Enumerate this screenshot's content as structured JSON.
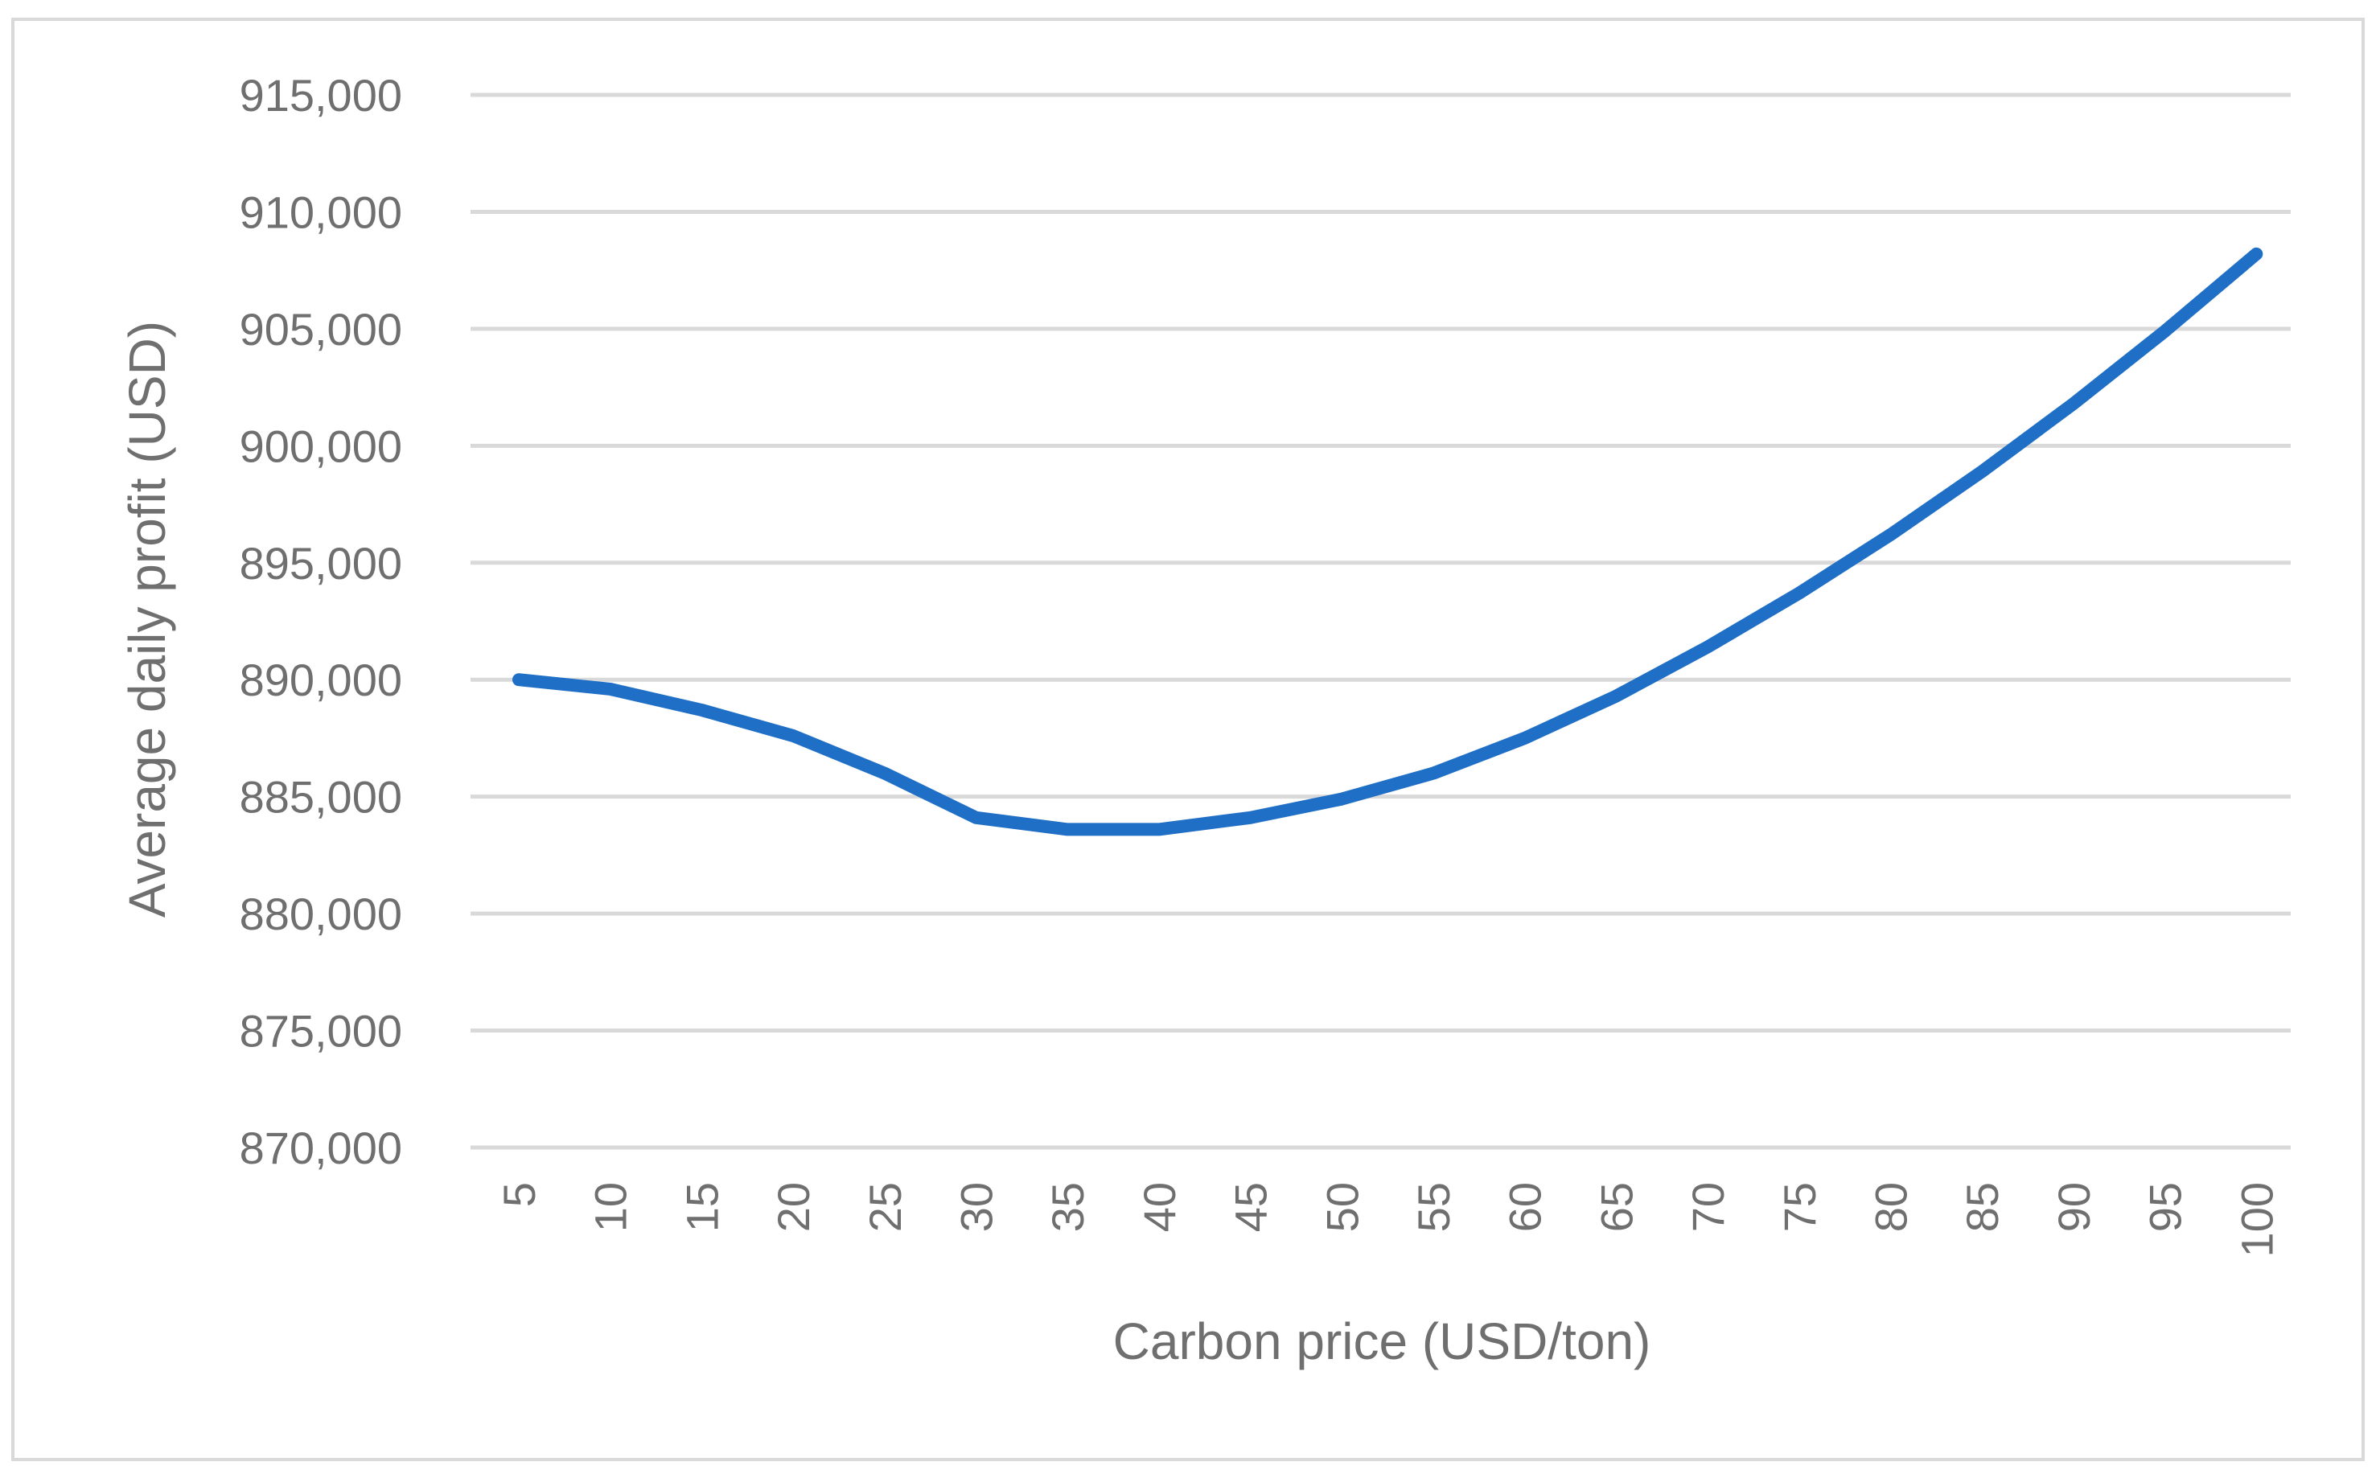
{
  "chart_data": {
    "type": "line",
    "title": "",
    "xlabel": "Carbon price (USD/ton)",
    "ylabel": "Average daily profit (USD)",
    "x": [
      5,
      10,
      15,
      20,
      25,
      30,
      35,
      40,
      45,
      50,
      55,
      60,
      65,
      70,
      75,
      80,
      85,
      90,
      95,
      100
    ],
    "x_tick_labels": [
      "5",
      "10",
      "15",
      "20",
      "25",
      "30",
      "35",
      "40",
      "45",
      "50",
      "55",
      "60",
      "65",
      "70",
      "75",
      "80",
      "85",
      "90",
      "95",
      "100"
    ],
    "y_ticks": [
      870000,
      875000,
      880000,
      885000,
      890000,
      895000,
      900000,
      905000,
      910000,
      915000
    ],
    "y_tick_labels": [
      "870,000",
      "875,000",
      "880,000",
      "885,000",
      "890,000",
      "895,000",
      "900,000",
      "905,000",
      "910,000",
      "915,000"
    ],
    "ylim": [
      870000,
      915000
    ],
    "grid": true,
    "legend": "none",
    "series": [
      {
        "color": "#1f6fc6",
        "values": [
          890000,
          889600,
          888700,
          887600,
          886000,
          884100,
          883600,
          883600,
          884100,
          884900,
          886000,
          887500,
          889300,
          891400,
          893700,
          896200,
          898900,
          901800,
          904900,
          908200
        ]
      }
    ]
  }
}
